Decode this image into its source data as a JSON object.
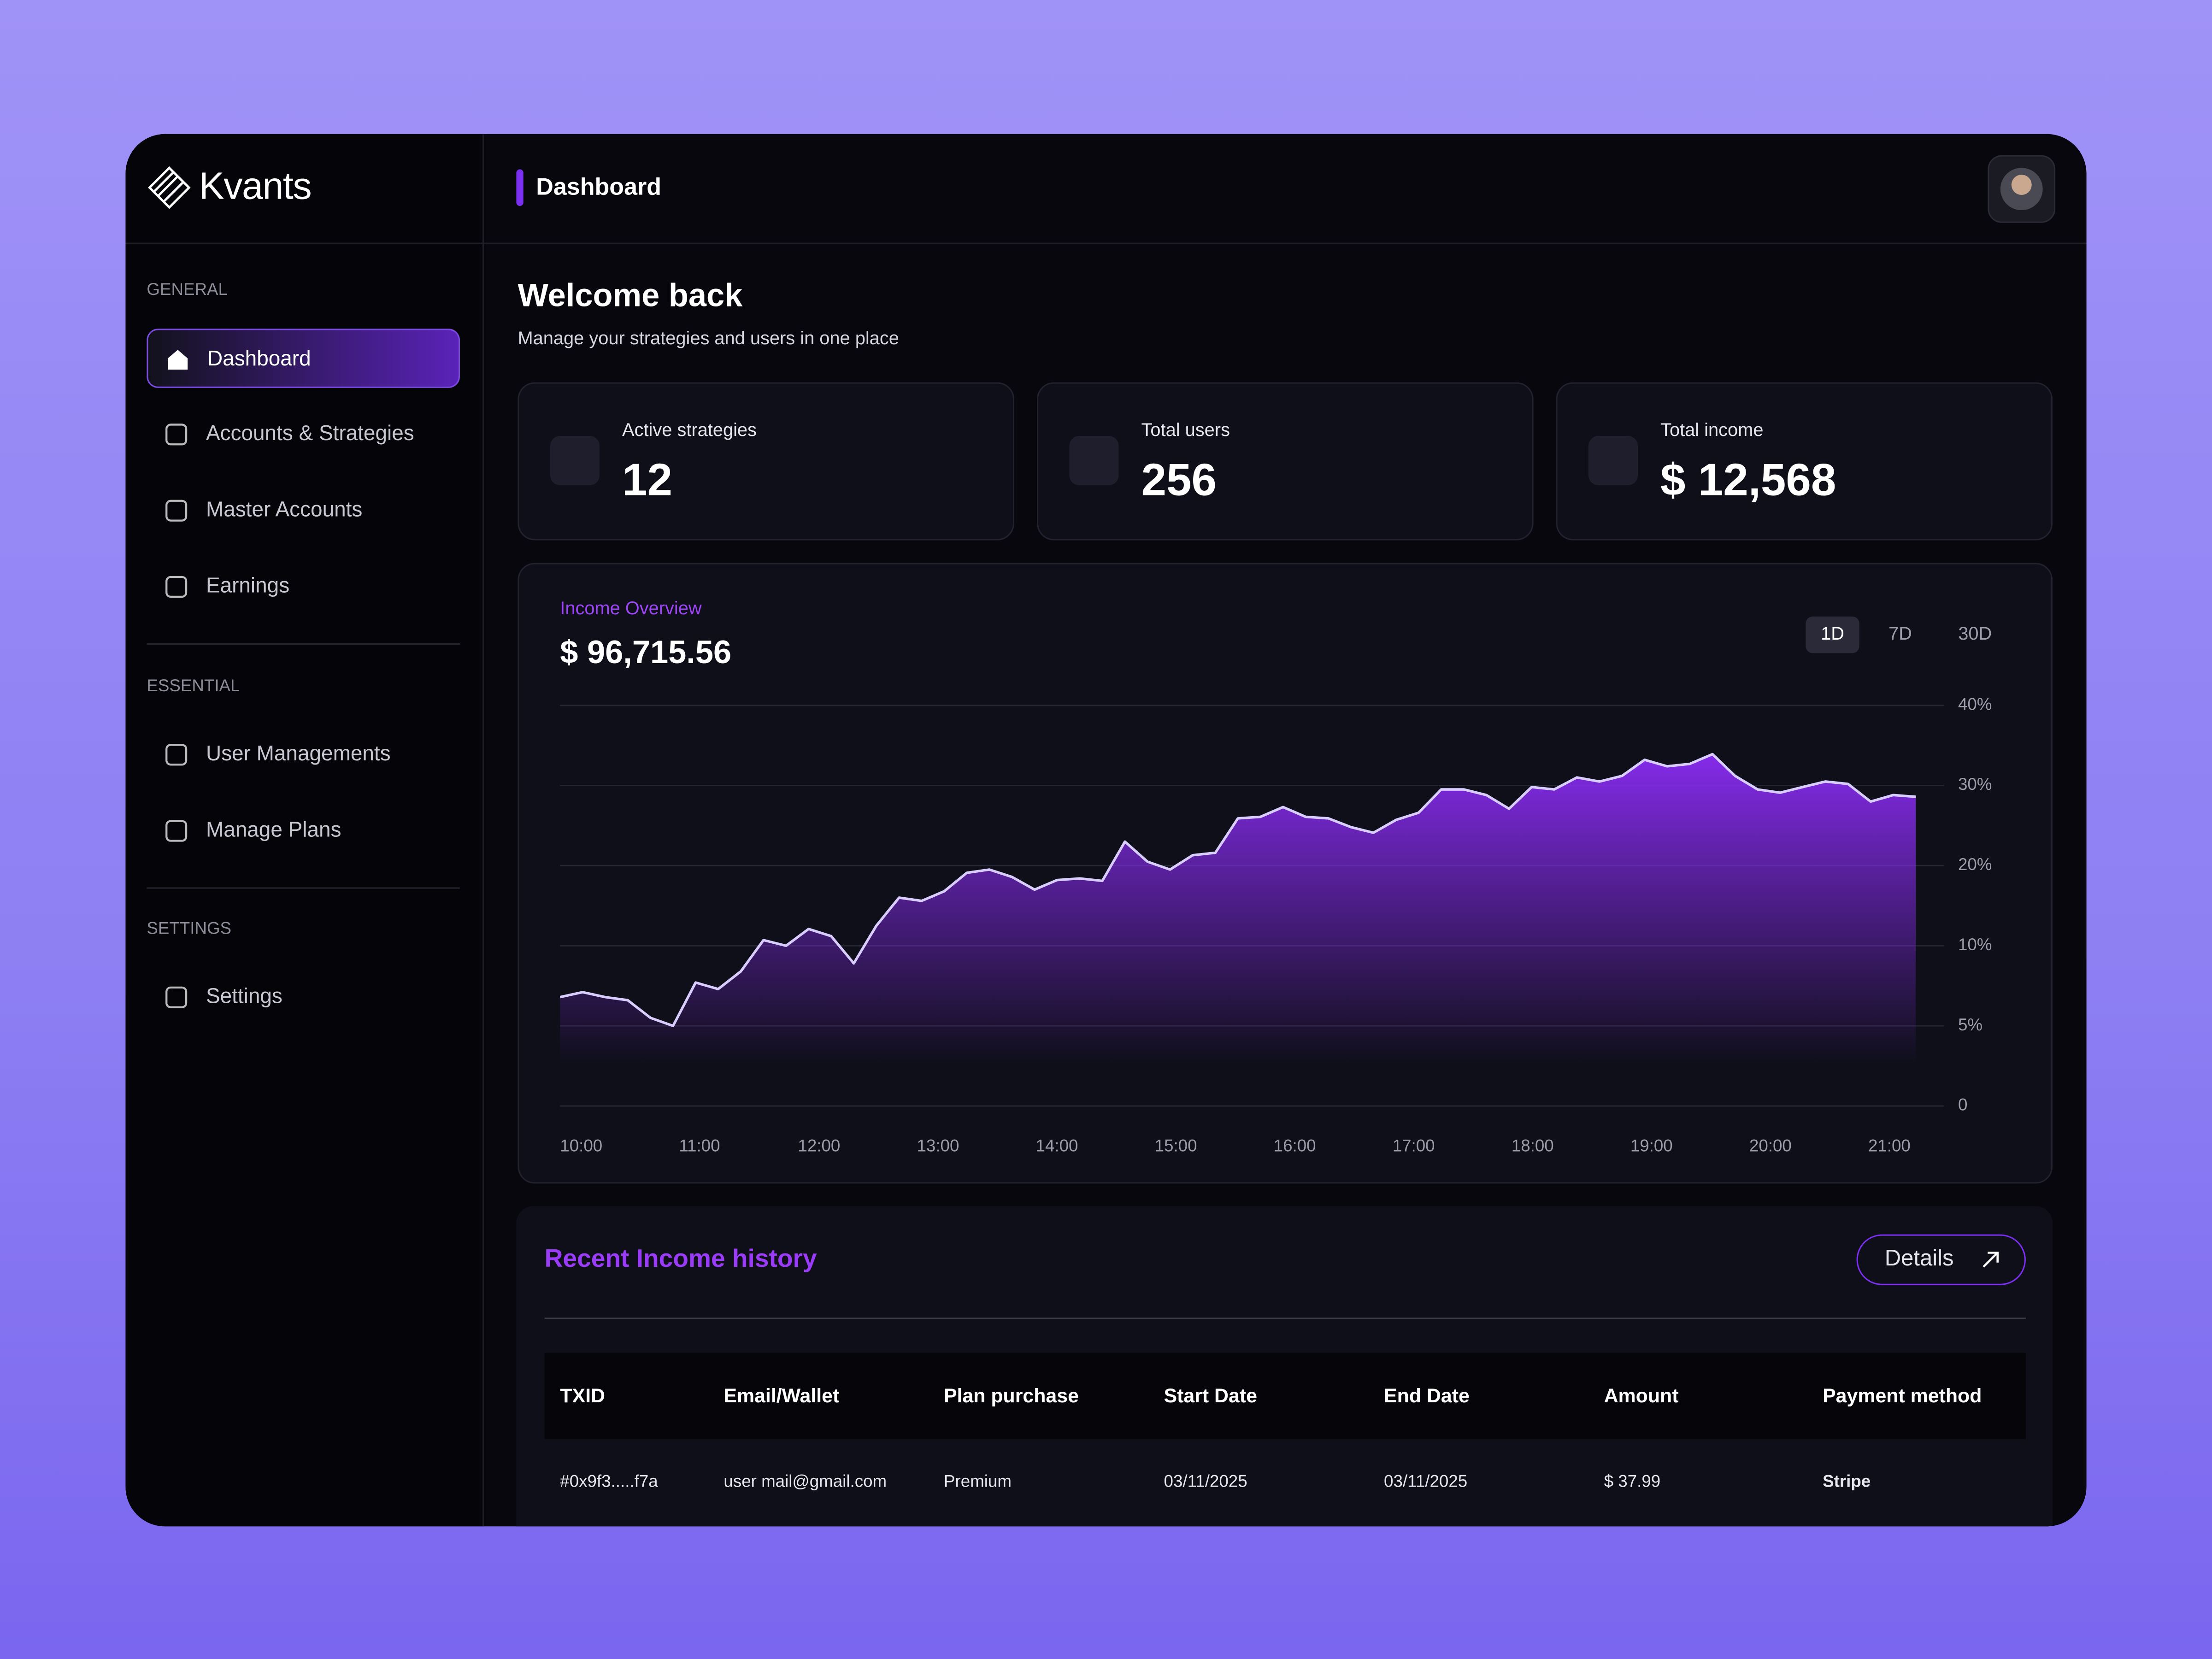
{
  "brand": "Kvants",
  "header": {
    "title": "Dashboard"
  },
  "sidebar": [
    {
      "title": "GENERAL",
      "items": [
        "Dashboard",
        "Accounts & Strategies",
        "Master Accounts",
        "Earnings"
      ]
    },
    {
      "title": "ESSENTIAL",
      "items": [
        "User Managements",
        "Manage Plans"
      ]
    },
    {
      "title": "SETTINGS",
      "items": [
        "Settings"
      ]
    }
  ],
  "welcome": {
    "title": "Welcome back",
    "subtitle": "Manage your strategies and users in one place"
  },
  "stats": [
    {
      "label": "Active strategies",
      "value": "12"
    },
    {
      "label": "Total users",
      "value": "256"
    },
    {
      "label": "Total income",
      "value": "$ 12,568"
    }
  ],
  "chart_data": {
    "type": "area",
    "title": "Income Overview",
    "total": "$ 96,715.56",
    "ranges": [
      "1D",
      "7D",
      "30D"
    ],
    "color": "#8b2cf5",
    "line_color": "#d9ccff",
    "x_labels": [
      "10:00",
      "11:00",
      "12:00",
      "13:00",
      "14:00",
      "15:00",
      "16:00",
      "17:00",
      "18:00",
      "19:00",
      "20:00",
      "21:00"
    ],
    "values": [
      6.8,
      7.1,
      6.8,
      6.6,
      5.5,
      5.0,
      7.7,
      7.3,
      8.4,
      10.7,
      10.0,
      12.1,
      11.2,
      8.9,
      12.5,
      16.0,
      15.6,
      16.8,
      19.1,
      19.5,
      18.6,
      17.0,
      18.2,
      18.4,
      18.1,
      23.0,
      20.5,
      19.5,
      21.3,
      21.6,
      25.9,
      26.1,
      27.3,
      26.1,
      25.9,
      24.8,
      24.1,
      25.7,
      26.6,
      29.5,
      29.5,
      28.8,
      27.1,
      29.8,
      29.5,
      31.0,
      30.5,
      31.2,
      33.2,
      32.4,
      32.7,
      33.9,
      31.2,
      29.5,
      29.1,
      29.8,
      30.5,
      30.2,
      28.0,
      28.8,
      28.6
    ],
    "ylim": [
      0,
      40
    ],
    "yticks": [
      0,
      {
        "value": 5,
        "label": "5%"
      },
      {
        "value": 10,
        "label": "10%"
      },
      {
        "value": 20,
        "label": "20%"
      },
      {
        "value": 30,
        "label": "30%"
      },
      {
        "value": 40,
        "label": "40%"
      }
    ],
    "grid": true
  },
  "table": {
    "title": "Recent Income history",
    "button": "Details",
    "columns": [
      "TXID",
      "Email/Wallet",
      "Plan purchase",
      "Start Date",
      "End Date",
      "Amount",
      "Payment method"
    ],
    "rows": [
      [
        "#0x9f3.....f7a",
        "user mail@gmail.com",
        "Premium",
        "03/11/2025",
        "03/11/2025",
        "$ 37.99",
        "Stripe"
      ]
    ]
  }
}
